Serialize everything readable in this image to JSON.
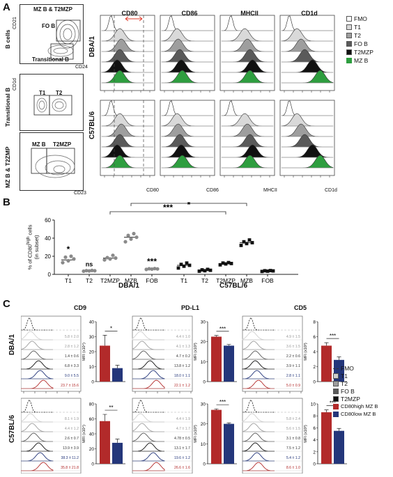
{
  "panelA": {
    "letter": "A",
    "gating": {
      "bcells_ylabel": "B cells",
      "cd21": "CD21",
      "cd24": "CD24",
      "mzb_t2mzp": "MZ B & T2MZP",
      "fob": "FO B",
      "transitional": "Transitional B",
      "trans_ylabel": "Transitional B",
      "cd1d": "CD1d",
      "t1": "T1",
      "t2": "T2",
      "mzt2_ylabel": "MZ B & T2ZMP",
      "mzb": "MZ B",
      "t2mzp": "T2MZP",
      "cd23": "CD23"
    },
    "columns": [
      "CD80",
      "CD86",
      "MHCII",
      "CD1d"
    ],
    "rows": [
      "DBA/1",
      "C57BL/6"
    ],
    "xaxis": [
      "CD80",
      "CD86",
      "MHCII",
      "CD1d"
    ],
    "legend": [
      {
        "label": "FMO",
        "color": "#ffffff"
      },
      {
        "label": "T1",
        "color": "#d9d9d9"
      },
      {
        "label": "T2",
        "color": "#9e9e9e"
      },
      {
        "label": "FO B",
        "color": "#5a5a5a"
      },
      {
        "label": "T2MZP",
        "color": "#111111"
      },
      {
        "label": "MZ B",
        "color": "#2e9e3f"
      }
    ]
  },
  "panelB": {
    "letter": "B",
    "ylabel": "% of CD80high cells (in subset)",
    "ylabel_line1": "% of CD80",
    "ylabel_sup": "high",
    "ylabel_line1b": " cells",
    "ylabel_line2": "(in subset)",
    "yticks": [
      "0",
      "20",
      "40",
      "60"
    ],
    "groups": [
      "DBA/1",
      "C57BL/6"
    ],
    "sig_top": "*",
    "sig_mid": "***",
    "chart_data": {
      "type": "scatter",
      "ylim": [
        0,
        60
      ],
      "categories": [
        "T1",
        "T2",
        "T2MZP",
        "MZB",
        "FOB",
        "T1",
        "T2",
        "T2MZP",
        "MZB",
        "FOB"
      ],
      "group_labels": [
        "DBA/1",
        "DBA/1",
        "DBA/1",
        "DBA/1",
        "DBA/1",
        "C57BL/6",
        "C57BL/6",
        "C57BL/6",
        "C57BL/6",
        "C57BL/6"
      ],
      "annotations": [
        "*",
        "ns",
        "",
        "",
        "***",
        "",
        "",
        "",
        "",
        ""
      ],
      "means": [
        16,
        4,
        18,
        41,
        6,
        10,
        4.5,
        12,
        35,
        4
      ],
      "points": [
        [
          13,
          15,
          17,
          19,
          20
        ],
        [
          3.5,
          3.8,
          4,
          4.1,
          4.3
        ],
        [
          16,
          17,
          18,
          18.5,
          21
        ],
        [
          36,
          39,
          41,
          43,
          45
        ],
        [
          5.5,
          5.8,
          6,
          6.2,
          6.4
        ],
        [
          7,
          9,
          10,
          11,
          12.5
        ],
        [
          3.5,
          4,
          4.5,
          5,
          5.5
        ],
        [
          10.5,
          11.5,
          12,
          12.5,
          13
        ],
        [
          32,
          34,
          35,
          36,
          38
        ],
        [
          3.2,
          3.5,
          3.8,
          4,
          4.2
        ]
      ]
    }
  },
  "panelC": {
    "letter": "C",
    "columns": [
      "CD9",
      "PD-L1",
      "CD5"
    ],
    "rows": [
      "DBA/1",
      "C57BL/6"
    ],
    "mfi_labels": [
      "MFI (x10⁴)",
      "MFI (x10³)",
      "MFI (x10³)"
    ],
    "legend": [
      {
        "label": "FMO",
        "color": "#ffffff",
        "dashed": true
      },
      {
        "label": "T1",
        "color": "#cfcfcf"
      },
      {
        "label": "T2",
        "color": "#9e9e9e"
      },
      {
        "label": "FO B",
        "color": "#5a5a5a"
      },
      {
        "label": "T2MZP",
        "color": "#111111"
      },
      {
        "label": "CD80high MZ B",
        "color": "#b22a2a"
      },
      {
        "label": "CD80low MZ B",
        "color": "#24367a"
      }
    ],
    "hist_values": [
      [
        [
          "5.8 ± 2.0",
          "2.8 ± 1.2",
          "1.4 ± 0.6",
          "6.8 ± 3.3",
          "9.0 ± 5.5",
          "23.7 ± 15.6"
        ],
        [
          "4.4 ± 1.0",
          "4.1 ± 1.3",
          "4.7 ± 0.2",
          "13.8 ± 1.2",
          "18.0 ± 1.1",
          "22.1 ± 1.2"
        ],
        [
          "4.9 ± 1.5",
          "3.6 ± 1.5",
          "2.2 ± 0.6",
          "3.9 ± 1.1",
          "2.8 ± 1.1",
          "5.0 ± 0.9"
        ]
      ],
      [
        [
          "8.1 ± 1.9",
          "4.4 ± 1.2",
          "2.6 ± 0.7",
          "13.9 ± 3.9",
          "38.3 ± 11.2",
          "35.8 ± 21.8"
        ],
        [
          "4.4 ± 1.9",
          "4.7 ± 1.7",
          "4.78 ± 0.5",
          "13.1 ± 1.7",
          "19.6 ± 1.2",
          "26.6 ± 1.6"
        ],
        [
          "5.8 ± 2.4",
          "5.6 ± 1.5",
          "3.1 ± 0.8",
          "7.5 ± 1.2",
          "5.4 ± 1.2",
          "8.6 ± 1.0"
        ]
      ]
    ],
    "bars": [
      [
        {
          "ticks": [
            "0",
            "10",
            "20",
            "30",
            "40"
          ],
          "ymax": 40,
          "high": 24,
          "low": 9,
          "high_err": 7,
          "low_err": 2,
          "sig": "*"
        },
        {
          "ticks": [
            "0",
            "10",
            "20",
            "30"
          ],
          "ymax": 30,
          "high": 22.5,
          "low": 18,
          "high_err": 0.6,
          "low_err": 0.6,
          "sig": "***"
        },
        {
          "ticks": [
            "0",
            "2",
            "4",
            "6",
            "8"
          ],
          "ymax": 8,
          "high": 4.8,
          "low": 2.9,
          "high_err": 0.4,
          "low_err": 0.4,
          "sig": "***"
        }
      ],
      [
        {
          "ticks": [
            "0",
            "20",
            "40",
            "60",
            "80"
          ],
          "ymax": 80,
          "high": 57,
          "low": 28,
          "high_err": 9,
          "low_err": 5,
          "sig": "**"
        },
        {
          "ticks": [
            "0",
            "10",
            "20",
            "30"
          ],
          "ymax": 30,
          "high": 27,
          "low": 20,
          "high_err": 0.5,
          "low_err": 0.5,
          "sig": "***"
        },
        {
          "ticks": [
            "0",
            "2",
            "4",
            "6",
            "8",
            "10"
          ],
          "ymax": 10,
          "high": 8.6,
          "low": 5.5,
          "high_err": 0.4,
          "low_err": 0.4,
          "sig": "***"
        }
      ]
    ]
  }
}
